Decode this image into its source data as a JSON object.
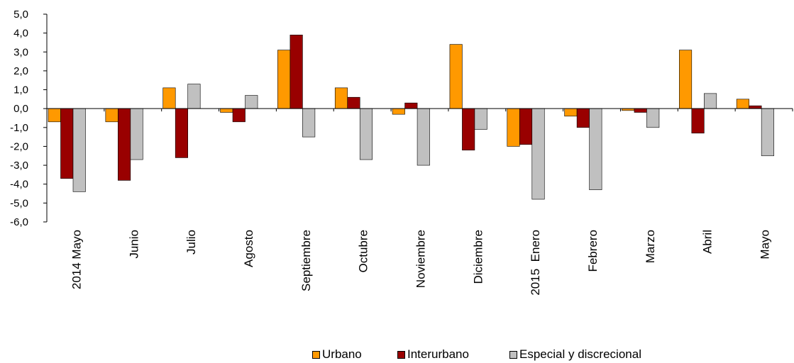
{
  "chart_data": {
    "type": "bar",
    "categories": [
      "2014 Mayo",
      "Junio",
      "Julio",
      "Agosto",
      "Septiembre",
      "Octubre",
      "Noviembre",
      "Diciembre",
      "2015  Enero",
      "Febrero",
      "Marzo",
      "Abril",
      "Mayo"
    ],
    "series": [
      {
        "name": "Urbano",
        "color": "#FF9900",
        "values": [
          -0.7,
          -0.7,
          1.1,
          -0.2,
          3.1,
          1.1,
          -0.3,
          3.4,
          -2.0,
          -0.4,
          -0.1,
          3.1,
          0.5
        ]
      },
      {
        "name": "Interurbano",
        "color": "#990000",
        "values": [
          -3.7,
          -3.8,
          -2.6,
          -0.7,
          3.9,
          0.6,
          0.3,
          -2.2,
          -1.9,
          -1.0,
          -0.2,
          -1.3,
          0.15
        ]
      },
      {
        "name": "Especial y discrecional",
        "color": "#C0C0C0",
        "values": [
          -4.4,
          -2.7,
          1.3,
          0.7,
          -1.5,
          -2.7,
          -3.0,
          -1.1,
          -4.8,
          -4.3,
          -1.0,
          0.8,
          -2.5
        ]
      }
    ],
    "ylim": [
      -6,
      5
    ],
    "yticks": [
      "5,0",
      "4,0",
      "3,0",
      "2,0",
      "1,0",
      "0,0",
      "-1,0",
      "-2,0",
      "-3,0",
      "-4,0",
      "-5,0",
      "-6,0"
    ],
    "title": "",
    "xlabel": "",
    "ylabel": "",
    "legend_position": "bottom",
    "grid": false
  }
}
